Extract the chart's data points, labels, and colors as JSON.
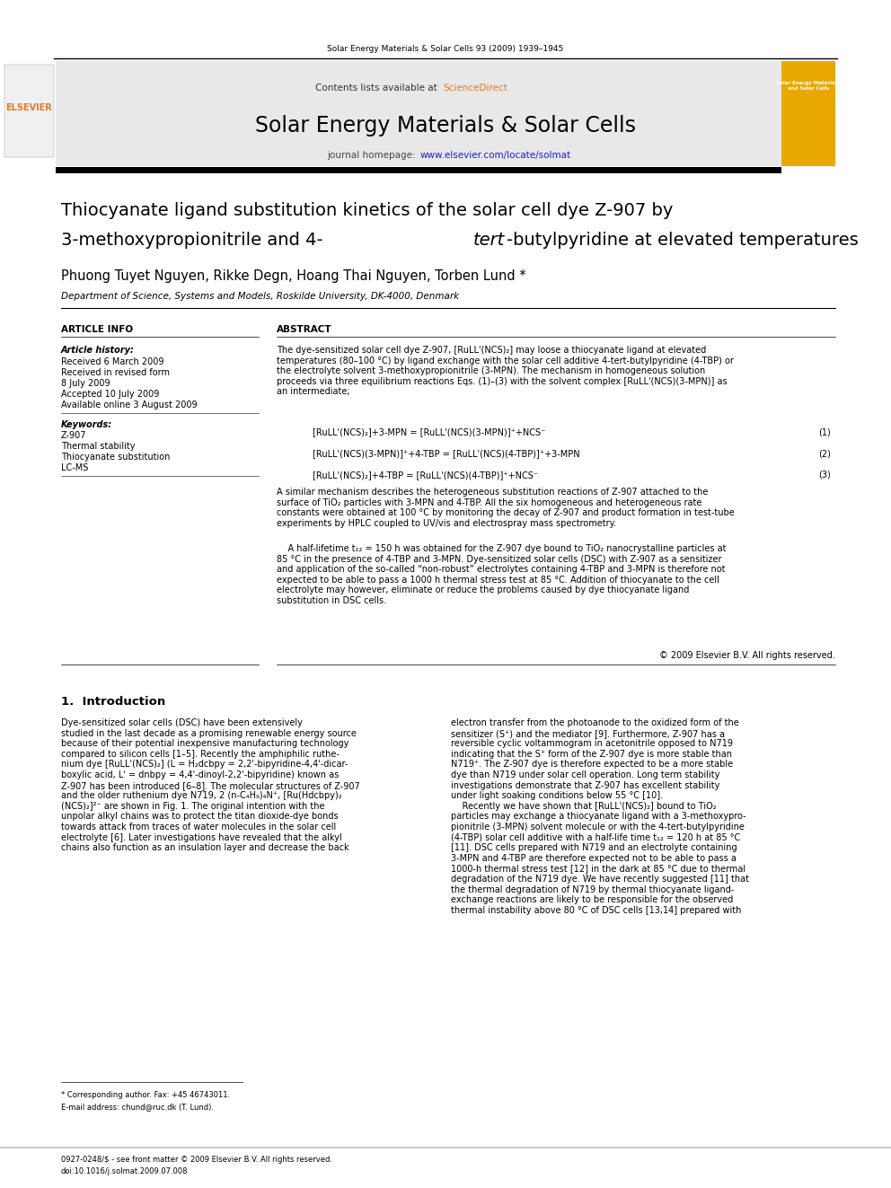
{
  "page_width": 9.92,
  "page_height": 13.23,
  "bg_color": "#ffffff",
  "header_journal": "Solar Energy Materials & Solar Cells 93 (2009) 1939–1945",
  "journal_title": "Solar Energy Materials & Solar Cells",
  "contents_line": "Contents lists available at ",
  "sciencedirect_text": "ScienceDirect",
  "journal_homepage_prefix": "journal homepage: ",
  "journal_homepage_link": "www.elsevier.com/locate/solmat",
  "article_title_line1": "Thiocyanate ligand substitution kinetics of the solar cell dye Z-907 by",
  "article_title_line2_pre": "3-methoxypropionitrile and 4-",
  "article_title_line2_italic": "tert",
  "article_title_line2_post": "-butylpyridine at elevated temperatures",
  "authors": "Phuong Tuyet Nguyen, Rikke Degn, Hoang Thai Nguyen, Torben Lund *",
  "affiliation": "Department of Science, Systems and Models, Roskilde University, DK-4000, Denmark",
  "article_info_label": "ARTICLE INFO",
  "abstract_label": "ABSTRACT",
  "article_history_label": "Article history:",
  "received1": "Received 6 March 2009",
  "received2": "Received in revised form",
  "date3": "8 July 2009",
  "accepted": "Accepted 10 July 2009",
  "available": "Available online 3 August 2009",
  "keywords_label": "Keywords:",
  "kw1": "Z-907",
  "kw2": "Thermal stability",
  "kw3": "Thiocyanate substitution",
  "kw4": "LC-MS",
  "abstract_text1": "The dye-sensitized solar cell dye Z-907, [RuLL'(NCS)₂] may loose a thiocyanate ligand at elevated\ntemperatures (80–100 °C) by ligand exchange with the solar cell additive 4-tert-butylpyridine (4-TBP) or\nthe electrolyte solvent 3-methoxypropionitrile (3-MPN). The mechanism in homogeneous solution\nproceeds via three equilibrium reactions Eqs. (1)–(3) with the solvent complex [RuLL'(NCS)(3-MPN)] as\nan intermediate;",
  "eq1": "[RuLL'(NCS)₂]+3-MPN = [RuLL'(NCS)(3-MPN)]⁺+NCS⁻",
  "eq1_num": "(1)",
  "eq2": "[RuLL'(NCS)(3-MPN)]⁺+4-TBP = [RuLL'(NCS)(4-TBP)]⁺+3-MPN",
  "eq2_num": "(2)",
  "eq3": "[RuLL'(NCS)₂]+4-TBP = [RuLL'(NCS)(4-TBP)]⁺+NCS⁻",
  "eq3_num": "(3)",
  "abstract_text2": "A similar mechanism describes the heterogeneous substitution reactions of Z-907 attached to the\nsurface of TiO₂ particles with 3-MPN and 4-TBP. All the six homogeneous and heterogeneous rate\nconstants were obtained at 100 °C by monitoring the decay of Z-907 and product formation in test-tube\nexperiments by HPLC coupled to UV/vis and electrospray mass spectrometry.",
  "abstract_text3": "    A half-lifetime t₁₂ = 150 h was obtained for the Z-907 dye bound to TiO₂ nanocrystalline particles at\n85 °C in the presence of 4-TBP and 3-MPN. Dye-sensitized solar cells (DSC) with Z-907 as a sensitizer\nand application of the so-called “non-robust” electrolytes containing 4-TBP and 3-MPN is therefore not\nexpected to be able to pass a 1000 h thermal stress test at 85 °C. Addition of thiocyanate to the cell\nelectrolyte may however, eliminate or reduce the problems caused by dye thiocyanate ligand\nsubstitution in DSC cells.",
  "copyright": "© 2009 Elsevier B.V. All rights reserved.",
  "intro_label": "1.  Introduction",
  "intro_col1": "Dye-sensitized solar cells (DSC) have been extensively\nstudied in the last decade as a promising renewable energy source\nbecause of their potential inexpensive manufacturing technology\ncompared to silicon cells [1–5]. Recently the amphiphilic ruthe-\nnium dye [RuLL'(NCS)₂] (L = H₂dcbpy = 2,2'-bipyridine-4,4'-dicar-\nboxylic acid, L' = dnbpy = 4,4'-dinoyl-2,2'-bipyridine) known as\nZ-907 has been introduced [6–8]. The molecular structures of Z-907\nand the older ruthenium dye N719, 2 (n-C₄H₉)₄N⁺, [Ru(Hdcbpy)₂\n(NCS)₂]²⁻ are shown in Fig. 1. The original intention with the\nunpolar alkyl chains was to protect the titan dioxide-dye bonds\ntowards attack from traces of water molecules in the solar cell\nelectrolyte [6]. Later investigations have revealed that the alkyl\nchains also function as an insulation layer and decrease the back",
  "intro_col2": "electron transfer from the photoanode to the oxidized form of the\nsensitizer (S⁺) and the mediator [9]. Furthermore, Z-907 has a\nreversible cyclic voltammogram in acetonitrile opposed to N719\nindicating that the S⁺ form of the Z-907 dye is more stable than\nN719⁺. The Z-907 dye is therefore expected to be a more stable\ndye than N719 under solar cell operation. Long term stability\ninvestigations demonstrate that Z-907 has excellent stability\nunder light soaking conditions below 55 °C [10].\n    Recently we have shown that [RuLL'(NCS)₂] bound to TiO₂\nparticles may exchange a thiocyanate ligand with a 3-methoxypro-\npionitrile (3-MPN) solvent molecule or with the 4-tert-butylpyridine\n(4-TBP) solar cell additive with a half-life time t₁₂ = 120 h at 85 °C\n[11]. DSC cells prepared with N719 and an electrolyte containing\n3-MPN and 4-TBP are therefore expected not to be able to pass a\n1000-h thermal stress test [12] in the dark at 85 °C due to thermal\ndegradation of the N719 dye. We have recently suggested [11] that\nthe thermal degradation of N719 by thermal thiocyanate ligand-\nexchange reactions are likely to be responsible for the observed\nthermal instability above 80 °C of DSC cells [13,14] prepared with",
  "footnote1": "* Corresponding author. Fax: +45 46743011.",
  "footnote2": "E-mail address: chund@ruc.dk (T. Lund).",
  "footer1": "0927-0248/$ - see front matter © 2009 Elsevier B.V. All rights reserved.",
  "footer2": "doi:10.1016/j.solmat.2009.07.008",
  "header_bg": "#e8e8e8",
  "orange_color": "#cc6600",
  "sciencedirect_color": "#e87820",
  "link_color": "#1a1aee",
  "elsevier_orange": "#e87820"
}
